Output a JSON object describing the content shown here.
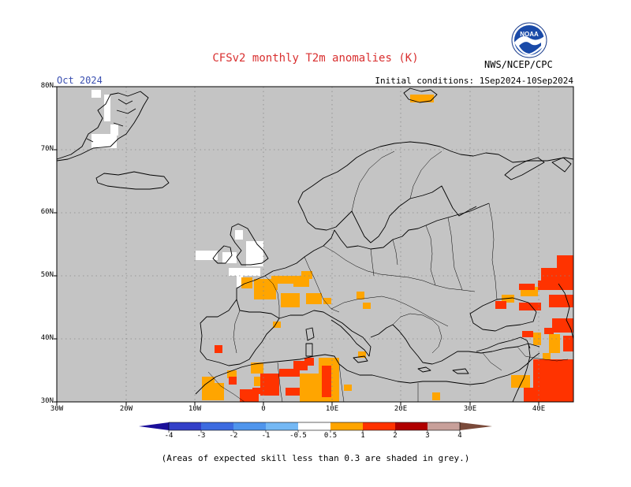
{
  "header": {
    "title": "CFSv2 monthly T2m anomalies (K)",
    "valid_month": "Oct 2024",
    "initial_conditions": "Initial conditions: 1Sep2024-10Sep2024",
    "agency": "NWS/NCEP/CPC",
    "logo_text": "NOAA"
  },
  "map": {
    "region": "Europe",
    "lon_range": [
      -30,
      45
    ],
    "lat_range": [
      30,
      80
    ],
    "background_color": "#c4c4c4",
    "lat_labels": [
      "30N",
      "40N",
      "50N",
      "60N",
      "70N",
      "80N"
    ],
    "lon_labels": [
      "30W",
      "20W",
      "10W",
      "0",
      "10E",
      "20E",
      "30E",
      "40E"
    ],
    "gridlines": true
  },
  "colorbar": {
    "labels": [
      "-4",
      "-3",
      "-2",
      "-1",
      "-0.5",
      "0.5",
      "1",
      "2",
      "3",
      "4"
    ],
    "colors": [
      "#1b0f9a",
      "#3340c8",
      "#3d6be0",
      "#4f95ec",
      "#74b8f4",
      "#ffffff",
      "#ffa500",
      "#ff3300",
      "#b00000",
      "#c8a09a",
      "#7a4a3a"
    ]
  },
  "footnote": "(Areas of expected skill less than 0.3 are shaded in grey.)"
}
